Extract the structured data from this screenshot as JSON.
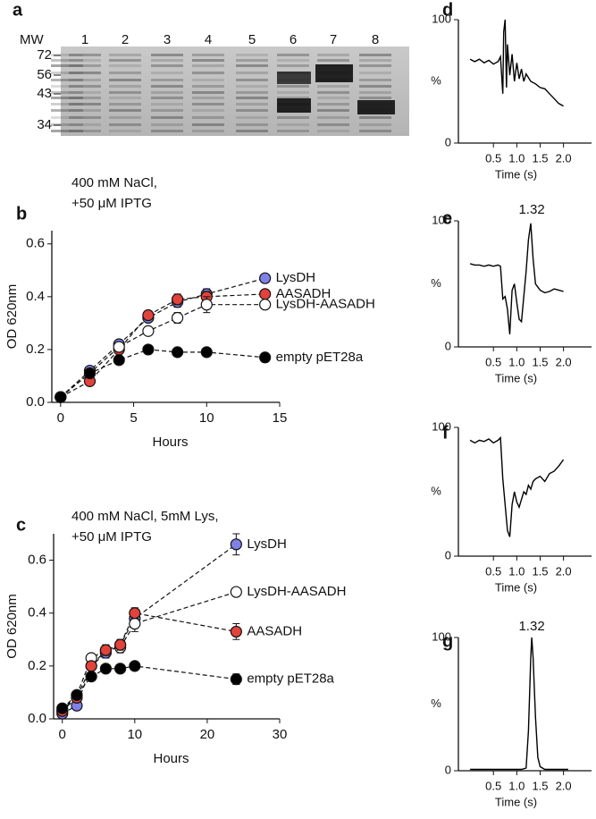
{
  "gel": {
    "label": "a",
    "mw_label": "MW",
    "lanes": [
      "1",
      "2",
      "3",
      "4",
      "5",
      "6",
      "7",
      "8"
    ],
    "markers": [
      72,
      56,
      43,
      34
    ]
  },
  "chart_data": [
    {
      "type": "line",
      "panel_label": "b",
      "title": [
        "400 mM NaCl,",
        "+50 μM IPTG"
      ],
      "x_label": "Hours",
      "y_label": "OD 620nm",
      "xlim": [
        -0.6,
        15
      ],
      "xticks": [
        0,
        5,
        10,
        15
      ],
      "ylim": [
        0,
        0.65
      ],
      "yticks": [
        {
          "value": 0,
          "label": "0.0"
        },
        0.2,
        0.4,
        0.6
      ],
      "markers": true,
      "line_style": "dashed",
      "x": [
        0,
        2,
        4,
        6,
        8,
        10,
        14
      ],
      "series": [
        {
          "name": "LysDH",
          "color": "#7f80e8",
          "values": [
            0.02,
            0.12,
            0.22,
            0.32,
            0.38,
            0.41,
            0.47
          ],
          "errors": [
            0,
            0,
            0,
            0,
            0.02,
            0.02,
            0
          ]
        },
        {
          "name": "AASADH",
          "color": "#e2423b",
          "values": [
            0.02,
            0.08,
            0.2,
            0.33,
            0.39,
            0.4,
            0.41
          ],
          "errors": [
            0,
            0,
            0,
            0,
            0.02,
            0.02,
            0
          ]
        },
        {
          "name": "LysDH-AASADH",
          "color": "#ffffff",
          "values": [
            0.02,
            0.11,
            0.21,
            0.27,
            0.32,
            0.37,
            0.37
          ],
          "errors": [
            0,
            0,
            0,
            0,
            0.02,
            0.03,
            0
          ]
        },
        {
          "name": "empty pET28a",
          "color": "#000000",
          "values": [
            0.02,
            0.11,
            0.16,
            0.2,
            0.19,
            0.19,
            0.17
          ],
          "errors": [
            0,
            0,
            0,
            0,
            0,
            0,
            0
          ]
        }
      ]
    },
    {
      "type": "line",
      "panel_label": "c",
      "title": [
        "400 mM NaCl, 5mM Lys,",
        "+50 μM IPTG"
      ],
      "x_label": "Hours",
      "y_label": "OD 620nm",
      "xlim": [
        -1.2,
        30
      ],
      "xticks": [
        0,
        10,
        20,
        30
      ],
      "ylim": [
        0,
        0.7
      ],
      "yticks": [
        {
          "value": 0,
          "label": "0.0"
        },
        0.2,
        0.4,
        0.6
      ],
      "markers": true,
      "line_style": "dashed",
      "x": [
        0,
        2,
        4,
        6,
        8,
        10,
        24
      ],
      "series": [
        {
          "name": "LysDH",
          "color": "#7f80e8",
          "values": [
            0.02,
            0.05,
            0.2,
            0.25,
            0.28,
            0.38,
            0.66
          ],
          "errors": [
            0,
            0,
            0,
            0.02,
            0.02,
            0.02,
            0.04
          ]
        },
        {
          "name": "LysDH-AASADH",
          "color": "#ffffff",
          "values": [
            0.03,
            0.09,
            0.23,
            0.26,
            0.27,
            0.36,
            0.48
          ],
          "errors": [
            0,
            0,
            0,
            0.02,
            0.02,
            0.03,
            0
          ]
        },
        {
          "name": "AASADH",
          "color": "#e2423b",
          "values": [
            0.03,
            0.08,
            0.2,
            0.26,
            0.28,
            0.4,
            0.33
          ],
          "errors": [
            0,
            0,
            0,
            0.02,
            0.02,
            0.02,
            0.03
          ]
        },
        {
          "name": "empty pET28a",
          "color": "#000000",
          "values": [
            0.04,
            0.09,
            0.16,
            0.19,
            0.19,
            0.2,
            0.15
          ],
          "errors": [
            0,
            0,
            0,
            0,
            0,
            0,
            0.02
          ]
        }
      ]
    },
    {
      "type": "trace",
      "panel_label": "d",
      "x_label": "Time (s)",
      "y_label": "%",
      "xlim": [
        -0.25,
        2.6
      ],
      "xticks": [
        0.5,
        {
          "value": 1,
          "label": "1.0"
        },
        1.5,
        {
          "value": 2,
          "label": "2.0"
        }
      ],
      "ylim": [
        0,
        100
      ],
      "yticks": [
        0,
        100
      ],
      "x": [
        0,
        0.1,
        0.2,
        0.3,
        0.4,
        0.5,
        0.6,
        0.65,
        0.7,
        0.72,
        0.75,
        0.78,
        0.8,
        0.85,
        0.9,
        0.95,
        1.0,
        1.05,
        1.1,
        1.15,
        1.2,
        1.3,
        1.4,
        1.5,
        1.6,
        1.7,
        1.8,
        1.9,
        2.0
      ],
      "series": [
        {
          "color": "#000000",
          "values": [
            68,
            66,
            68,
            65,
            67,
            64,
            66,
            70,
            40,
            90,
            100,
            45,
            80,
            55,
            72,
            50,
            65,
            52,
            60,
            50,
            56,
            50,
            48,
            45,
            44,
            40,
            36,
            32,
            30
          ]
        }
      ]
    },
    {
      "type": "trace",
      "panel_label": "e",
      "x_label": "Time (s)",
      "y_label": "%",
      "xlim": [
        -0.25,
        2.6
      ],
      "xticks": [
        0.5,
        {
          "value": 1,
          "label": "1.0"
        },
        1.5,
        {
          "value": 2,
          "label": "2.0"
        }
      ],
      "ylim": [
        0,
        100
      ],
      "yticks": [
        0,
        100
      ],
      "annotations": [
        {
          "x": 1.32,
          "text": "1.32"
        }
      ],
      "x": [
        0,
        0.1,
        0.2,
        0.3,
        0.4,
        0.5,
        0.6,
        0.65,
        0.7,
        0.75,
        0.8,
        0.85,
        0.9,
        0.95,
        1.0,
        1.05,
        1.1,
        1.15,
        1.2,
        1.25,
        1.3,
        1.35,
        1.4,
        1.5,
        1.6,
        1.7,
        1.8,
        1.9,
        2.0
      ],
      "series": [
        {
          "color": "#000000",
          "values": [
            66,
            65,
            65,
            64,
            65,
            64,
            65,
            64,
            38,
            40,
            30,
            10,
            45,
            50,
            35,
            22,
            20,
            40,
            60,
            85,
            98,
            70,
            50,
            45,
            43,
            44,
            46,
            45,
            44
          ]
        }
      ]
    },
    {
      "type": "trace",
      "panel_label": "f",
      "x_label": "Time (s)",
      "y_label": "%",
      "xlim": [
        -0.25,
        2.6
      ],
      "xticks": [
        0.5,
        {
          "value": 1,
          "label": "1.0"
        },
        1.5,
        {
          "value": 2,
          "label": "2.0"
        }
      ],
      "ylim": [
        0,
        100
      ],
      "yticks": [
        0,
        100
      ],
      "x": [
        0,
        0.1,
        0.2,
        0.3,
        0.4,
        0.5,
        0.6,
        0.65,
        0.7,
        0.75,
        0.8,
        0.85,
        0.9,
        0.95,
        1.0,
        1.05,
        1.1,
        1.15,
        1.2,
        1.25,
        1.3,
        1.35,
        1.4,
        1.5,
        1.6,
        1.7,
        1.8,
        1.9,
        2.0
      ],
      "series": [
        {
          "color": "#000000",
          "values": [
            90,
            88,
            90,
            89,
            91,
            88,
            90,
            92,
            60,
            40,
            20,
            15,
            40,
            50,
            42,
            38,
            44,
            50,
            48,
            55,
            52,
            58,
            60,
            62,
            58,
            64,
            66,
            70,
            75
          ]
        }
      ]
    },
    {
      "type": "trace",
      "panel_label": "g",
      "x_label": "Time (s)",
      "y_label": "%",
      "xlim": [
        -0.25,
        2.6
      ],
      "xticks": [
        0.5,
        {
          "value": 1,
          "label": "1.0"
        },
        1.5,
        {
          "value": 2,
          "label": "2.0"
        }
      ],
      "ylim": [
        0,
        100
      ],
      "yticks": [
        0,
        100
      ],
      "annotations": [
        {
          "x": 1.32,
          "text": "1.32"
        }
      ],
      "x": [
        0,
        0.2,
        0.4,
        0.6,
        0.8,
        1.0,
        1.1,
        1.2,
        1.25,
        1.3,
        1.32,
        1.35,
        1.4,
        1.45,
        1.5,
        1.6,
        1.8,
        2.0,
        2.1
      ],
      "series": [
        {
          "color": "#000000",
          "values": [
            1,
            1,
            1,
            1,
            1,
            1,
            1,
            2,
            30,
            85,
            100,
            85,
            40,
            10,
            3,
            1,
            1,
            1,
            1
          ]
        }
      ]
    }
  ]
}
